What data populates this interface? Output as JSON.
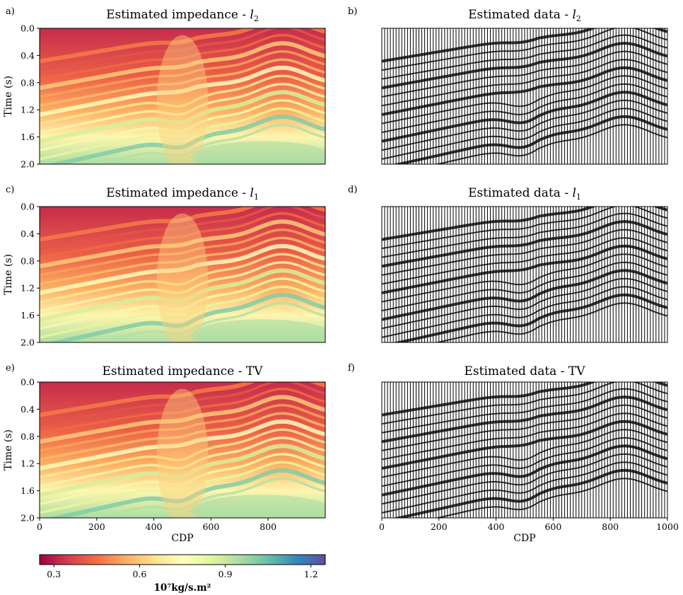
{
  "figure": {
    "colorbar": {
      "ticks": [
        "0.3",
        "0.6",
        "0.9",
        "1.2"
      ],
      "tick_values": [
        0.3,
        0.6,
        0.9,
        1.2
      ],
      "range": [
        0.25,
        1.25
      ],
      "label": "10⁷kg/s.m²",
      "colormap": [
        "#9e0142",
        "#d53e4f",
        "#f46d43",
        "#fdae61",
        "#fee08b",
        "#ffffbf",
        "#e6f598",
        "#abdda4",
        "#66c2a5",
        "#3288bd",
        "#5e4fa2"
      ]
    }
  },
  "chart_data": [
    {
      "panel_label": "a)",
      "type": "heatmap",
      "title": "Estimated impedance - l2",
      "title_main": "Estimated impedance - ",
      "title_var": "l",
      "title_sub": "2",
      "xlabel": "",
      "ylabel": "Time (s)",
      "xlim": [
        0,
        1000
      ],
      "ylim": [
        2.0,
        0.0
      ],
      "x_ticks": [],
      "y_ticks": [
        "0.0",
        "0.4",
        "0.8",
        "1.2",
        "1.6",
        "2.0"
      ],
      "y_tick_values": [
        0.0,
        0.4,
        0.8,
        1.2,
        1.6,
        2.0
      ],
      "value_range": [
        0.3,
        1.2
      ]
    },
    {
      "panel_label": "b)",
      "type": "wiggle",
      "title": "Estimated data - l2",
      "title_main": "Estimated data - ",
      "title_var": "l",
      "title_sub": "2",
      "xlabel": "",
      "ylabel": "",
      "xlim": [
        0,
        1000
      ],
      "ylim": [
        2.0,
        0.0
      ],
      "x_ticks": []
    },
    {
      "panel_label": "c)",
      "type": "heatmap",
      "title": "Estimated impedance - l1",
      "title_main": "Estimated impedance - ",
      "title_var": "l",
      "title_sub": "1",
      "xlabel": "",
      "ylabel": "Time (s)",
      "xlim": [
        0,
        1000
      ],
      "ylim": [
        2.0,
        0.0
      ],
      "x_ticks": [],
      "y_ticks": [
        "0.0",
        "0.4",
        "0.8",
        "1.2",
        "1.6",
        "2.0"
      ],
      "y_tick_values": [
        0.0,
        0.4,
        0.8,
        1.2,
        1.6,
        2.0
      ],
      "value_range": [
        0.3,
        1.2
      ]
    },
    {
      "panel_label": "d)",
      "type": "wiggle",
      "title": "Estimated data - l1",
      "title_main": "Estimated data - ",
      "title_var": "l",
      "title_sub": "1",
      "xlabel": "",
      "ylabel": "",
      "xlim": [
        0,
        1000
      ],
      "ylim": [
        2.0,
        0.0
      ],
      "x_ticks": []
    },
    {
      "panel_label": "e)",
      "type": "heatmap",
      "title": "Estimated impedance - TV",
      "title_main": "Estimated impedance - TV",
      "title_var": "",
      "title_sub": "",
      "xlabel": "CDP",
      "ylabel": "Time (s)",
      "xlim": [
        0,
        1000
      ],
      "ylim": [
        2.0,
        0.0
      ],
      "x_ticks": [
        "0",
        "200",
        "400",
        "600",
        "800"
      ],
      "x_tick_values": [
        0,
        200,
        400,
        600,
        800
      ],
      "y_ticks": [
        "0.0",
        "0.4",
        "0.8",
        "1.2",
        "1.6",
        "2.0"
      ],
      "y_tick_values": [
        0.0,
        0.4,
        0.8,
        1.2,
        1.6,
        2.0
      ],
      "value_range": [
        0.3,
        1.2
      ]
    },
    {
      "panel_label": "f)",
      "type": "wiggle",
      "title": "Estimated data - TV",
      "title_main": "Estimated data - TV",
      "title_var": "",
      "title_sub": "",
      "xlabel": "CDP",
      "ylabel": "",
      "xlim": [
        0,
        1000
      ],
      "ylim": [
        2.0,
        0.0
      ],
      "x_ticks": [
        "0",
        "200",
        "400",
        "600",
        "800",
        "1000"
      ],
      "x_tick_values": [
        0,
        200,
        400,
        600,
        800,
        1000
      ]
    }
  ]
}
